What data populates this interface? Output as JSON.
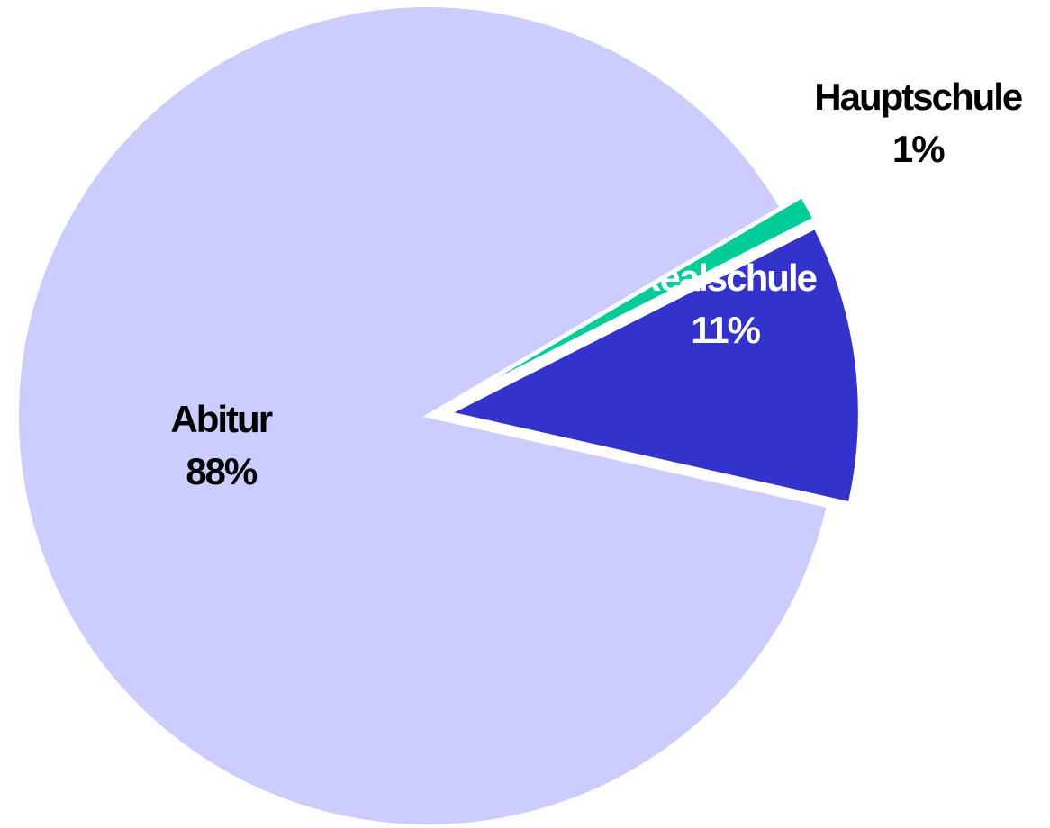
{
  "chart_data": {
    "type": "pie",
    "categories": [
      "Hauptschule",
      "Realschule",
      "Abitur"
    ],
    "values": [
      1,
      11,
      88
    ],
    "value_labels": [
      "1%",
      "11%",
      "88%"
    ],
    "colors": [
      "#00cc99",
      "#3333cc",
      "#ccccff"
    ],
    "label_colors": [
      "#000000",
      "#ffffff",
      "#000000"
    ]
  }
}
